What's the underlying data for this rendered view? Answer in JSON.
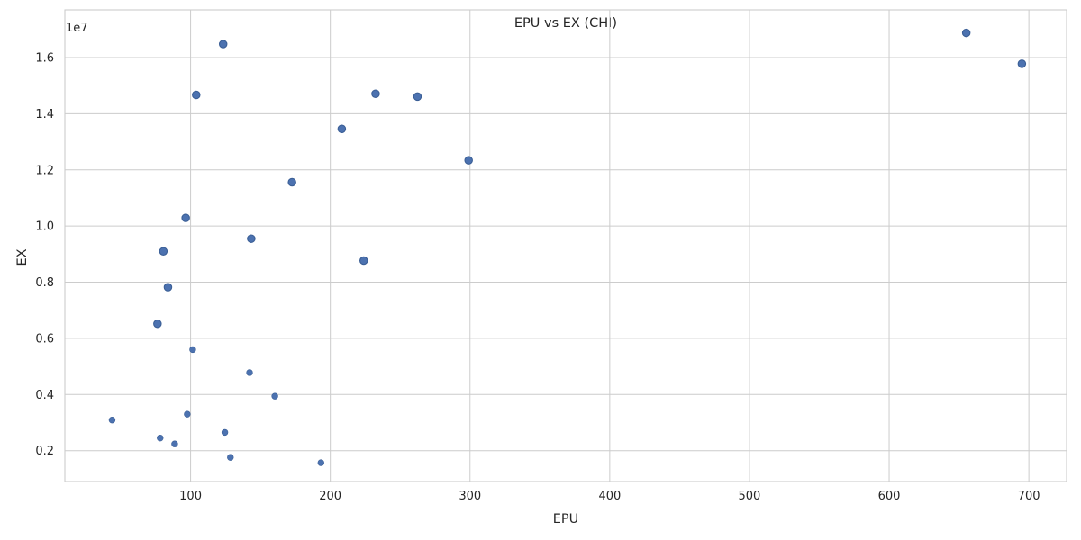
{
  "chart_data": {
    "type": "scatter",
    "title": "EPU vs EX (CHI)",
    "xlabel": "EPU",
    "ylabel": "EX",
    "y_multiplier_label": "1e7",
    "xlim": [
      10,
      727
    ],
    "ylim": [
      900000,
      17700000
    ],
    "xticks": [
      100,
      200,
      300,
      400,
      500,
      600,
      700
    ],
    "xtick_labels": [
      "100",
      "200",
      "300",
      "400",
      "500",
      "600",
      "700"
    ],
    "yticks": [
      2000000,
      4000000,
      6000000,
      8000000,
      10000000,
      12000000,
      14000000,
      16000000
    ],
    "ytick_labels": [
      "0.2",
      "0.4",
      "0.6",
      "0.8",
      "1.0",
      "1.2",
      "1.4",
      "1.6"
    ],
    "grid": true,
    "marker_color": "#4c72b0",
    "points": [
      {
        "x": 123.3,
        "y": 16480000,
        "repeated": true
      },
      {
        "x": 104.0,
        "y": 14670000,
        "repeated": true
      },
      {
        "x": 232.4,
        "y": 14710000,
        "repeated": true
      },
      {
        "x": 262.4,
        "y": 14610000,
        "repeated": true
      },
      {
        "x": 208.2,
        "y": 13460000,
        "repeated": true
      },
      {
        "x": 299.0,
        "y": 12340000,
        "repeated": true
      },
      {
        "x": 172.6,
        "y": 11560000,
        "repeated": true
      },
      {
        "x": 96.5,
        "y": 10290000,
        "repeated": true
      },
      {
        "x": 143.4,
        "y": 9550000,
        "repeated": true
      },
      {
        "x": 80.5,
        "y": 9100000,
        "repeated": true
      },
      {
        "x": 223.9,
        "y": 8770000,
        "repeated": true
      },
      {
        "x": 83.8,
        "y": 7820000,
        "repeated": true
      },
      {
        "x": 76.3,
        "y": 6520000,
        "repeated": true
      },
      {
        "x": 655.2,
        "y": 16880000,
        "repeated": true
      },
      {
        "x": 695.0,
        "y": 15780000,
        "repeated": true
      },
      {
        "x": 101.5,
        "y": 5600000,
        "repeated": false
      },
      {
        "x": 142.2,
        "y": 4780000,
        "repeated": false
      },
      {
        "x": 160.3,
        "y": 3940000,
        "repeated": false
      },
      {
        "x": 97.6,
        "y": 3300000,
        "repeated": false
      },
      {
        "x": 43.8,
        "y": 3090000,
        "repeated": false
      },
      {
        "x": 124.5,
        "y": 2650000,
        "repeated": false
      },
      {
        "x": 78.2,
        "y": 2450000,
        "repeated": false
      },
      {
        "x": 88.6,
        "y": 2240000,
        "repeated": false
      },
      {
        "x": 128.5,
        "y": 1760000,
        "repeated": false
      },
      {
        "x": 193.3,
        "y": 1570000,
        "repeated": false
      }
    ]
  }
}
